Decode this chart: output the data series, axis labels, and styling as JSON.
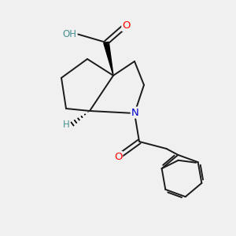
{
  "background_color": "#f0f0f0",
  "atom_colors": {
    "C": "#000000",
    "N": "#0000cd",
    "O": "#ff0000",
    "H": "#4a9090"
  },
  "bond_color": "#1a1a1a",
  "figsize": [
    3.0,
    3.0
  ],
  "dpi": 100,
  "xlim": [
    0,
    10
  ],
  "ylim": [
    0,
    10
  ]
}
